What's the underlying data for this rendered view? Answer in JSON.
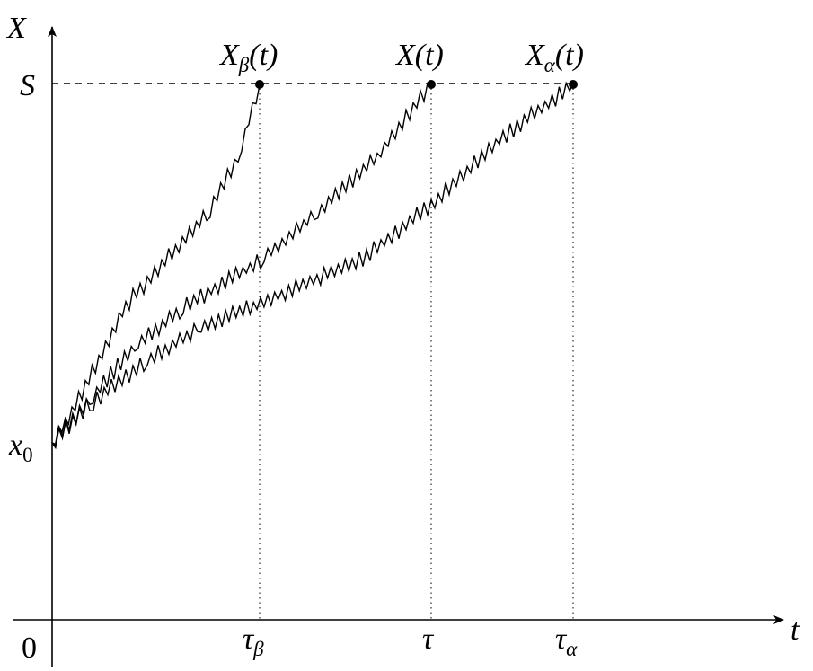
{
  "axes": {
    "y_label": "X",
    "x_label": "t",
    "origin": "0"
  },
  "levels": {
    "threshold": "S",
    "start": {
      "base": "x",
      "sub": "0"
    }
  },
  "times": [
    {
      "base": "τ",
      "sub": "β"
    },
    {
      "base": "τ"
    },
    {
      "base": "τ",
      "sub": "α"
    }
  ],
  "paths": [
    {
      "base": "X",
      "sub": "β",
      "suffix": "(t)"
    },
    {
      "base": "X",
      "suffix": "(t)"
    },
    {
      "base": "X",
      "sub": "α",
      "suffix": "(t)"
    }
  ]
}
